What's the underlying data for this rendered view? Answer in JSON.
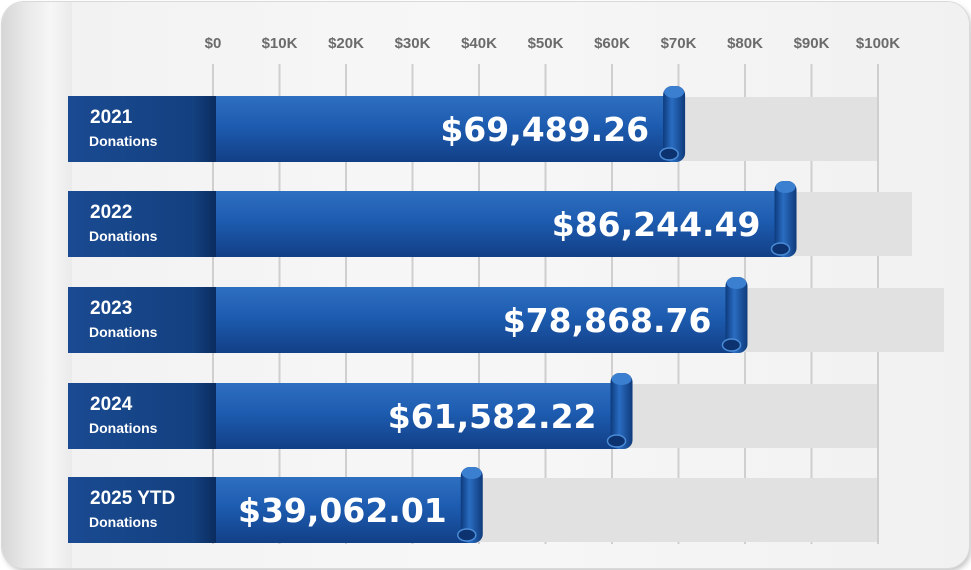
{
  "chart_data": {
    "type": "bar",
    "orientation": "horizontal",
    "title": "",
    "xlabel": "",
    "ylabel": "",
    "xlim": [
      0,
      100000
    ],
    "tick_values": [
      0,
      10000,
      20000,
      30000,
      40000,
      50000,
      60000,
      70000,
      80000,
      90000,
      100000
    ],
    "tick_labels": [
      "$0",
      "$10K",
      "$20K",
      "$30K",
      "$40K",
      "$50K",
      "$60K",
      "$70K",
      "$80K",
      "$90K",
      "$100K"
    ],
    "grid": true,
    "categories": [
      {
        "year": "2021",
        "sub": "Donations"
      },
      {
        "year": "2022",
        "sub": "Donations"
      },
      {
        "year": "2023",
        "sub": "Donations"
      },
      {
        "year": "2024",
        "sub": "Donations"
      },
      {
        "year": "2025 YTD",
        "sub": "Donations"
      }
    ],
    "values": [
      69489.26,
      86244.49,
      78868.76,
      61582.22,
      39062.01
    ],
    "value_labels": [
      "$69,489.26",
      "$86,244.49",
      "$78,868.76",
      "$61,582.22",
      "$39,062.01"
    ]
  },
  "colors": {
    "bar_light": "#2f74c6",
    "bar_mid": "#1c57a8",
    "bar_dark": "#0f3a7a",
    "label_box": "#123f86",
    "track": "#e1e1e1",
    "grid": "#cfcfcf"
  }
}
